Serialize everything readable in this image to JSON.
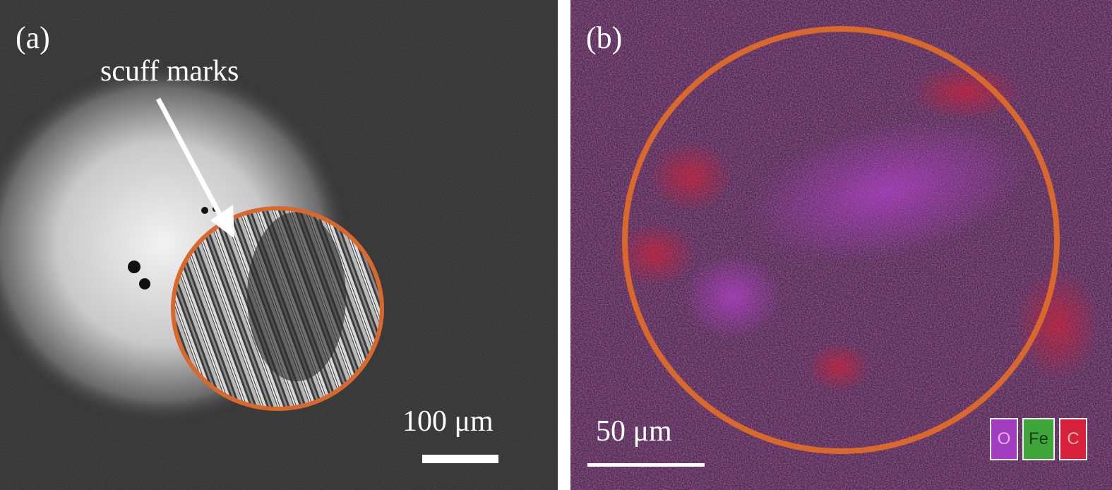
{
  "panel_a": {
    "label": "(a)",
    "annotation": "scuff marks",
    "scale_bar_label": "100 μm"
  },
  "panel_b": {
    "label": "(b)",
    "scale_bar_label": "50 μm",
    "legend": [
      {
        "label": "O",
        "color": "#a23cc0"
      },
      {
        "label": "Fe",
        "color": "#3fa63a"
      },
      {
        "label": "C",
        "color": "#d8203a"
      }
    ]
  },
  "colors": {
    "circle": "#d9682c",
    "oxygen": "#b040c8",
    "carbon": "#d02038",
    "iron": "#2e7a2e"
  }
}
